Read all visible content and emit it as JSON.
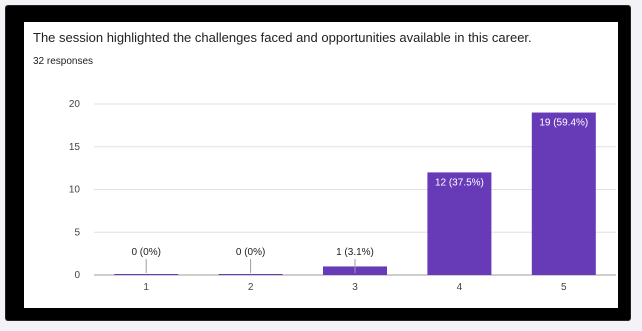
{
  "question": {
    "title": "The session highlighted the challenges faced and opportunities available in this career.",
    "responses_label": "32 responses"
  },
  "colors": {
    "bar": "#673ab7",
    "grid": "#e0e0e0",
    "axis": "#9e9e9e",
    "label_inside": "#ffffff",
    "label_outside": "#202124"
  },
  "chart_data": {
    "type": "bar",
    "categories": [
      "1",
      "2",
      "3",
      "4",
      "5"
    ],
    "values": [
      0,
      0,
      1,
      12,
      19
    ],
    "data_labels": [
      "0 (0%)",
      "0 (0%)",
      "1 (3.1%)",
      "12 (37.5%)",
      "19 (59.4%)"
    ],
    "yticks": [
      0,
      5,
      10,
      15,
      20
    ],
    "ylim": [
      0,
      20
    ],
    "grid": true,
    "legend": "none",
    "title": "",
    "xlabel": "",
    "ylabel": ""
  }
}
